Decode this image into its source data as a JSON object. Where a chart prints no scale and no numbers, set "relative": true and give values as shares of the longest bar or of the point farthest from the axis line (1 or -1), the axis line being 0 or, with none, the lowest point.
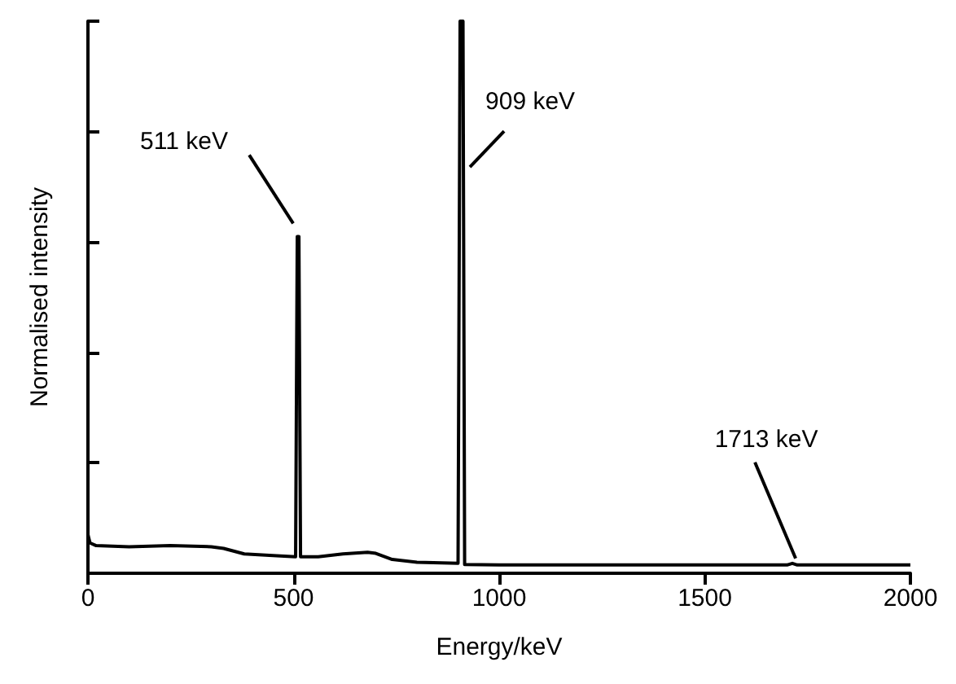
{
  "chart_data": {
    "type": "line",
    "xlabel": "Energy/keV",
    "ylabel": "Normalised intensity",
    "relative": true,
    "xlim": [
      0,
      2000
    ],
    "xticks": [
      0,
      500,
      1000,
      1500,
      2000
    ],
    "grid": false,
    "marker": "none",
    "line_style": "solid",
    "series": [
      {
        "color": "#000000",
        "x": [
          0,
          5,
          20,
          100,
          200,
          300,
          330,
          380,
          450,
          505,
          509,
          513,
          517,
          560,
          620,
          680,
          700,
          740,
          800,
          900,
          905,
          912,
          916,
          1000,
          1500,
          1700,
          1713,
          1725,
          2000
        ],
        "values": [
          0.07,
          0.055,
          0.05,
          0.048,
          0.05,
          0.048,
          0.045,
          0.035,
          0.032,
          0.03,
          0.61,
          0.61,
          0.03,
          0.03,
          0.035,
          0.038,
          0.036,
          0.025,
          0.02,
          0.018,
          1,
          1,
          0.016,
          0.015,
          0.015,
          0.015,
          0.018,
          0.015,
          0.015
        ]
      }
    ],
    "annotations": [
      {
        "text": "511 keV",
        "x": 511,
        "y": 0.61
      },
      {
        "text": "909 keV",
        "x": 909,
        "y": 0.73
      },
      {
        "text": "1713 keV",
        "x": 1713,
        "y": 0.018
      }
    ]
  }
}
